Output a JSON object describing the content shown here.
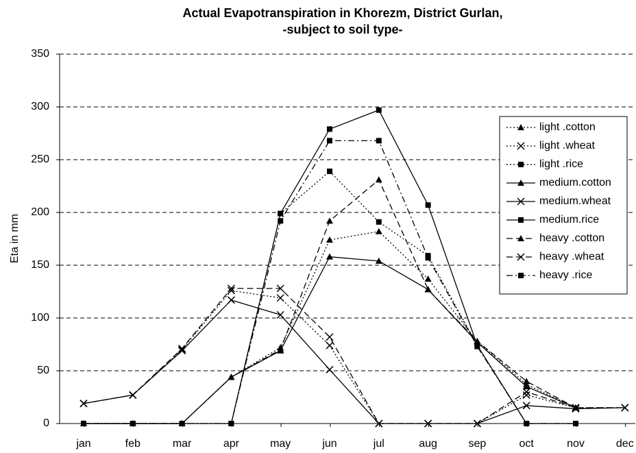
{
  "chart_data": {
    "type": "line",
    "title": "Actual Evapotranspiration in Khorezm, District Gurlan,",
    "subtitle": "-subject to soil type-",
    "y_label": "Eta in mm",
    "categories": [
      "jan",
      "feb",
      "mar",
      "apr",
      "may",
      "jun",
      "jul",
      "aug",
      "sep",
      "oct",
      "nov",
      "dec"
    ],
    "ylim": [
      0,
      350
    ],
    "yticks": [
      0,
      50,
      100,
      150,
      200,
      250,
      300,
      350
    ],
    "grid": true,
    "legend": "right",
    "series": [
      {
        "name": "light .cotton",
        "color": "#000000",
        "dash": "dotted",
        "marker": "triangle",
        "values": [
          0,
          0,
          0,
          44,
          72,
          174,
          182,
          137,
          78,
          37,
          15,
          null
        ]
      },
      {
        "name": "light .wheat",
        "color": "#000000",
        "dash": "dotted",
        "marker": "x",
        "values": [
          19,
          27,
          70,
          126,
          119,
          74,
          0,
          0,
          0,
          27,
          15,
          15
        ]
      },
      {
        "name": "light .rice",
        "color": "#000000",
        "dash": "dotted",
        "marker": "square",
        "values": [
          0,
          0,
          0,
          0,
          199,
          239,
          191,
          159,
          74,
          0,
          0,
          null
        ]
      },
      {
        "name": "medium.cotton",
        "color": "#000000",
        "dash": "solid",
        "marker": "triangle",
        "values": [
          0,
          0,
          0,
          44,
          69,
          158,
          154,
          127,
          77,
          35,
          15,
          null
        ]
      },
      {
        "name": "medium.wheat",
        "color": "#000000",
        "dash": "solid",
        "marker": "x",
        "values": [
          19,
          27,
          69,
          117,
          103,
          51,
          0,
          0,
          0,
          17,
          14,
          15
        ]
      },
      {
        "name": "medium.rice",
        "color": "#000000",
        "dash": "solid",
        "marker": "square",
        "values": [
          0,
          0,
          0,
          0,
          199,
          279,
          297,
          207,
          74,
          0,
          0,
          null
        ]
      },
      {
        "name": "heavy .cotton",
        "color": "#000000",
        "dash": "dashed",
        "marker": "triangle",
        "values": [
          0,
          0,
          0,
          44,
          70,
          192,
          231,
          127,
          78,
          40,
          15,
          null
        ]
      },
      {
        "name": "heavy .wheat",
        "color": "#000000",
        "dash": "dashed",
        "marker": "x",
        "values": [
          19,
          27,
          71,
          128,
          128,
          82,
          0,
          0,
          0,
          30,
          15,
          15
        ]
      },
      {
        "name": "heavy .rice",
        "color": "#000000",
        "dash": "dashdot",
        "marker": "square",
        "values": [
          0,
          0,
          0,
          0,
          192,
          268,
          268,
          157,
          73,
          0,
          0,
          null
        ]
      }
    ]
  }
}
